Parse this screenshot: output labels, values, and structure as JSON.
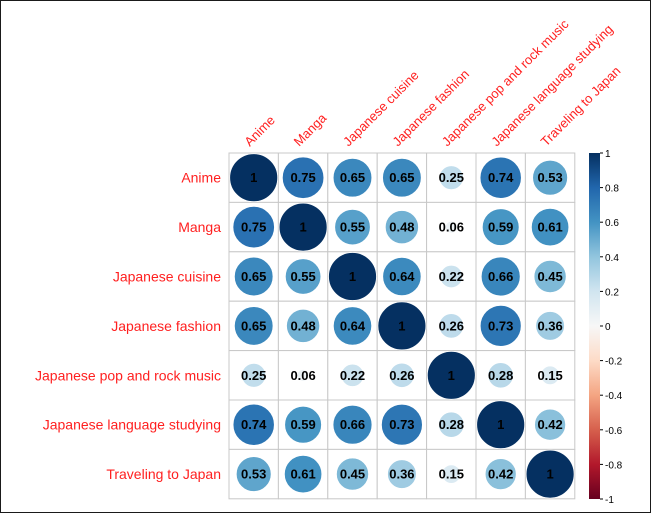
{
  "chart_data": {
    "type": "heatmap",
    "title": "",
    "style": "corrplot-circle",
    "variables": [
      "Anime",
      "Manga",
      "Japanese cuisine",
      "Japanese fashion",
      "Japanese pop and rock music",
      "Japanese language studying",
      "Traveling to Japan"
    ],
    "matrix": [
      [
        1,
        0.75,
        0.65,
        0.65,
        0.25,
        0.74,
        0.53
      ],
      [
        0.75,
        1,
        0.55,
        0.48,
        0.06,
        0.59,
        0.61
      ],
      [
        0.65,
        0.55,
        1,
        0.64,
        0.22,
        0.66,
        0.45
      ],
      [
        0.65,
        0.48,
        0.64,
        1,
        0.26,
        0.73,
        0.36
      ],
      [
        0.25,
        0.06,
        0.22,
        0.26,
        1,
        0.28,
        0.15
      ],
      [
        0.74,
        0.59,
        0.66,
        0.73,
        0.28,
        1,
        0.42
      ],
      [
        0.53,
        0.61,
        0.45,
        0.36,
        0.15,
        0.42,
        1
      ]
    ],
    "colorbar": {
      "range": [
        -1,
        1
      ],
      "ticks": [
        "1",
        "0.8",
        "0.6",
        "0.4",
        "0.2",
        "0",
        "-0.2",
        "-0.4",
        "-0.6",
        "-0.8",
        "-1"
      ]
    },
    "colors": {
      "label": "#ff2020",
      "grid": "#c8c8c8",
      "negative_strong": "#67001f",
      "negative_mid": "#d6604d",
      "neutral": "#f7f7f7",
      "positive_mid": "#4393c3",
      "positive_strong": "#053061"
    }
  }
}
